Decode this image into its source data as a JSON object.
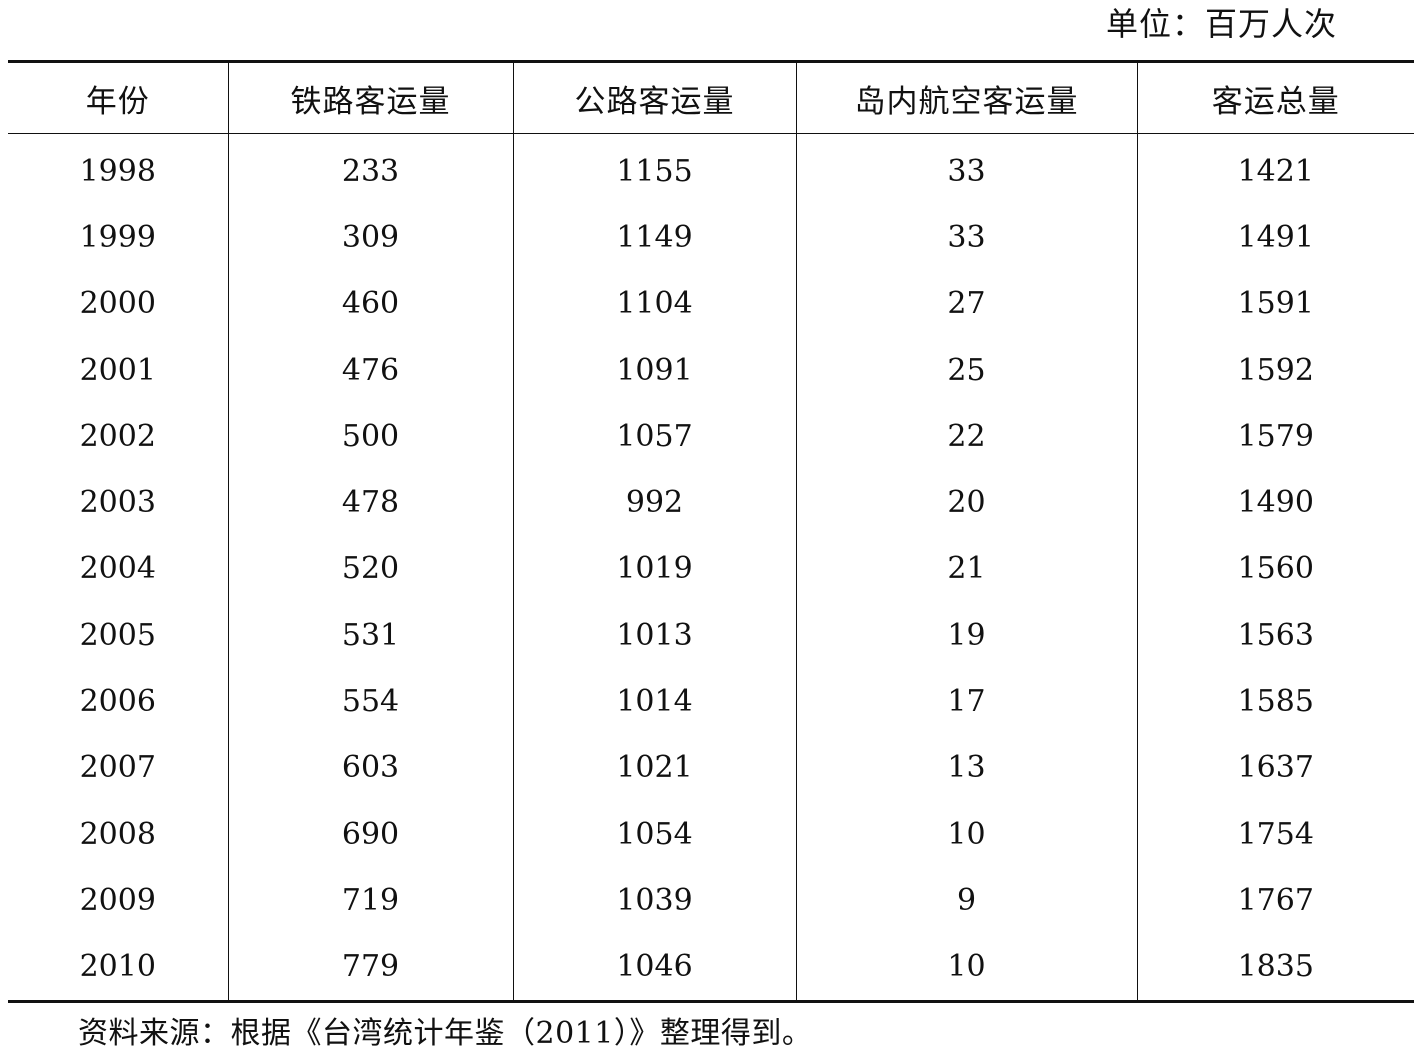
{
  "unit_label": "单位：百万人次",
  "table": {
    "headers": [
      "年份",
      "铁路客运量",
      "公路客运量",
      "岛内航空客运量",
      "客运总量"
    ],
    "rows": [
      [
        "1998",
        "233",
        "1155",
        "33",
        "1421"
      ],
      [
        "1999",
        "309",
        "1149",
        "33",
        "1491"
      ],
      [
        "2000",
        "460",
        "1104",
        "27",
        "1591"
      ],
      [
        "2001",
        "476",
        "1091",
        "25",
        "1592"
      ],
      [
        "2002",
        "500",
        "1057",
        "22",
        "1579"
      ],
      [
        "2003",
        "478",
        "992",
        "20",
        "1490"
      ],
      [
        "2004",
        "520",
        "1019",
        "21",
        "1560"
      ],
      [
        "2005",
        "531",
        "1013",
        "19",
        "1563"
      ],
      [
        "2006",
        "554",
        "1014",
        "17",
        "1585"
      ],
      [
        "2007",
        "603",
        "1021",
        "13",
        "1637"
      ],
      [
        "2008",
        "690",
        "1054",
        "10",
        "1754"
      ],
      [
        "2009",
        "719",
        "1039",
        "9",
        "1767"
      ],
      [
        "2010",
        "779",
        "1046",
        "10",
        "1835"
      ]
    ]
  },
  "source_note": "资料来源：根据《台湾统计年鉴（2011）》整理得到。"
}
